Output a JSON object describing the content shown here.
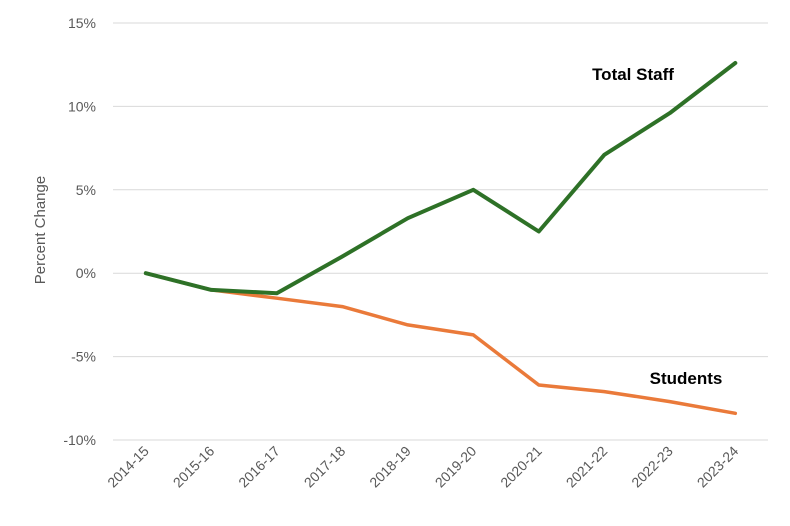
{
  "chart_data": {
    "type": "line",
    "title": "",
    "xlabel": "",
    "ylabel": "Percent Change",
    "ylim": [
      -10,
      15
    ],
    "yticks": [
      15,
      10,
      5,
      0,
      -5,
      -10
    ],
    "ytick_labels": [
      "15%",
      "10%",
      "5%",
      "0%",
      "-5%",
      "-10%"
    ],
    "grid": true,
    "legend": "none",
    "categories": [
      "2014-15",
      "2015-16",
      "2016-17",
      "2017-18",
      "2018-19",
      "2019-20",
      "2020-21",
      "2021-22",
      "2022-23",
      "2023-24"
    ],
    "series": [
      {
        "name": "Total Staff",
        "color": "#2e7127",
        "values": [
          0,
          -1.0,
          -1.2,
          1.0,
          3.3,
          5.0,
          2.5,
          7.1,
          9.6,
          12.6
        ]
      },
      {
        "name": "Students",
        "color": "#ea7a3a",
        "values": [
          0,
          -1.0,
          -1.5,
          -2.0,
          -3.1,
          -3.7,
          -6.7,
          -7.1,
          -7.7,
          -8.4
        ]
      }
    ]
  }
}
